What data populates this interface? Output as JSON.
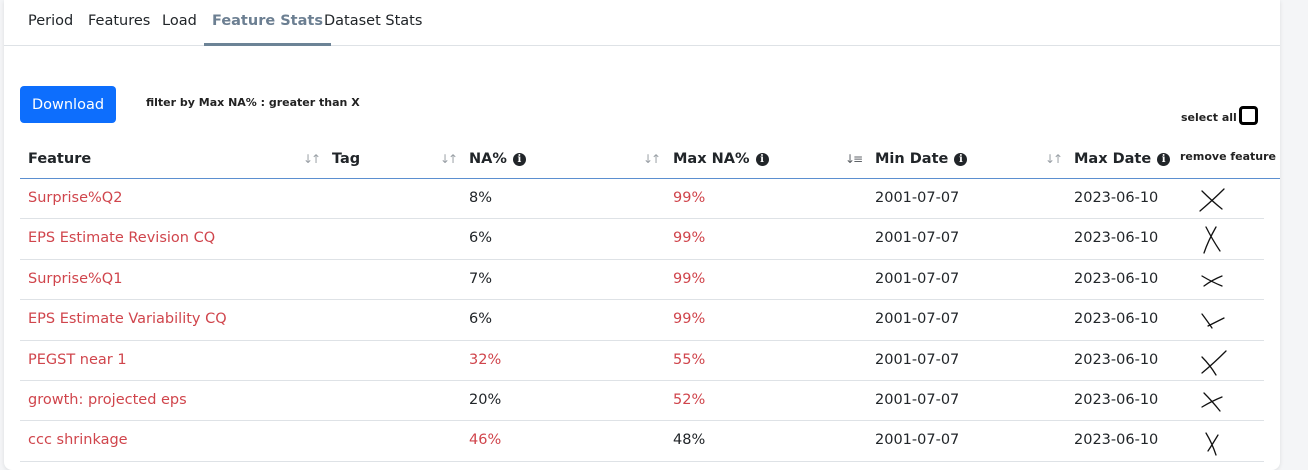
{
  "tabs": [
    {
      "label": "Period",
      "active": false
    },
    {
      "label": "Features",
      "active": false
    },
    {
      "label": "Load",
      "active": false
    },
    {
      "label": "Feature Stats",
      "active": true
    },
    {
      "label": "Dataset Stats",
      "active": false
    }
  ],
  "toolbar": {
    "download_label": "Download",
    "filter_label": "filter by Max NA% : greater than X",
    "select_all_label": "select all"
  },
  "table": {
    "headers": {
      "feature": "Feature",
      "tag": "Tag",
      "na": "NA%",
      "max_na": "Max NA%",
      "min_date": "Min Date",
      "max_date": "Max Date",
      "remove": "remove feature"
    },
    "rows": [
      {
        "feature": "Surprise%Q2",
        "tag": "",
        "na": "8%",
        "max_na": "99%",
        "min_date": "2001-07-07",
        "max_date": "2023-06-10",
        "na_highlight": false,
        "max_na_highlight": true
      },
      {
        "feature": "EPS Estimate Revision CQ",
        "tag": "",
        "na": "6%",
        "max_na": "99%",
        "min_date": "2001-07-07",
        "max_date": "2023-06-10",
        "na_highlight": false,
        "max_na_highlight": true
      },
      {
        "feature": "Surprise%Q1",
        "tag": "",
        "na": "7%",
        "max_na": "99%",
        "min_date": "2001-07-07",
        "max_date": "2023-06-10",
        "na_highlight": false,
        "max_na_highlight": true
      },
      {
        "feature": "EPS Estimate Variability CQ",
        "tag": "",
        "na": "6%",
        "max_na": "99%",
        "min_date": "2001-07-07",
        "max_date": "2023-06-10",
        "na_highlight": false,
        "max_na_highlight": true
      },
      {
        "feature": "PEGST near 1",
        "tag": "",
        "na": "32%",
        "max_na": "55%",
        "min_date": "2001-07-07",
        "max_date": "2023-06-10",
        "na_highlight": true,
        "max_na_highlight": true
      },
      {
        "feature": "growth: projected eps",
        "tag": "",
        "na": "20%",
        "max_na": "52%",
        "min_date": "2001-07-07",
        "max_date": "2023-06-10",
        "na_highlight": false,
        "max_na_highlight": true
      },
      {
        "feature": "ccc shrinkage",
        "tag": "",
        "na": "46%",
        "max_na": "48%",
        "min_date": "2001-07-07",
        "max_date": "2023-06-10",
        "na_highlight": true,
        "max_na_highlight": false
      }
    ]
  },
  "colors": {
    "accent": "#0d6efd",
    "highlight_text": "#d0454c",
    "active_tab": "#6c7f92"
  },
  "icons": {
    "info": "info-circle-icon",
    "sort": "sort-arrows-icon",
    "remove": "hand-drawn-x-icon"
  }
}
